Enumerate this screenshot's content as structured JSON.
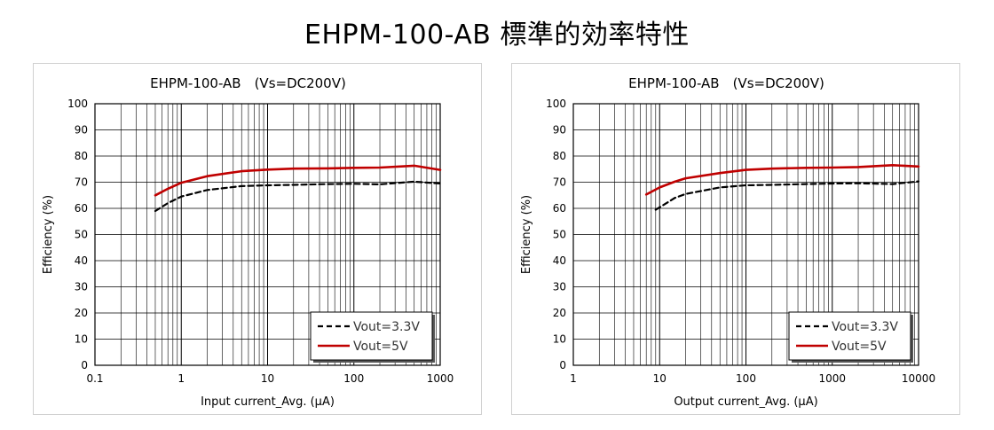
{
  "page": {
    "title": "EHPM-100-AB 標準的効率特性"
  },
  "colors": {
    "vout_3_3": "#000000",
    "vout_5": "#c00000",
    "grid": "#000000"
  },
  "chart_data": [
    {
      "type": "line",
      "title": "EHPM-100-AB　(Vs=DC200V)",
      "xlabel": "Input current_Avg. (μA)",
      "ylabel": "Efficiency (%)",
      "xscale": "log",
      "xlim": [
        0.1,
        1000
      ],
      "ylim": [
        0,
        100
      ],
      "xticks": [
        0.1,
        1,
        10,
        100,
        1000
      ],
      "xtick_labels": [
        "0.1",
        "1",
        "10",
        "100",
        "1000"
      ],
      "yticks": [
        0,
        10,
        20,
        30,
        40,
        50,
        60,
        70,
        80,
        90,
        100
      ],
      "grid": true,
      "legend_position": "bottom-right",
      "series": [
        {
          "name": "Vout=3.3V",
          "style": "dashed",
          "color": "#000000",
          "x": [
            0.5,
            0.7,
            1,
            2,
            5,
            10,
            20,
            50,
            100,
            200,
            500,
            1000
          ],
          "y": [
            59.0,
            62.0,
            64.5,
            67.0,
            68.5,
            68.8,
            69.0,
            69.3,
            69.4,
            69.2,
            70.2,
            69.5
          ]
        },
        {
          "name": "Vout=5V",
          "style": "solid",
          "color": "#c00000",
          "x": [
            0.5,
            0.7,
            1,
            2,
            5,
            10,
            20,
            50,
            100,
            200,
            500,
            1000
          ],
          "y": [
            65.0,
            67.5,
            69.8,
            72.3,
            74.2,
            74.8,
            75.2,
            75.3,
            75.5,
            75.6,
            76.3,
            74.7
          ]
        }
      ]
    },
    {
      "type": "line",
      "title": "EHPM-100-AB　(Vs=DC200V)",
      "xlabel": "Output current_Avg. (μA)",
      "ylabel": "Efficiency (%)",
      "xscale": "log",
      "xlim": [
        1,
        10000
      ],
      "ylim": [
        0,
        100
      ],
      "xticks": [
        1,
        10,
        100,
        1000,
        10000
      ],
      "xtick_labels": [
        "1",
        "10",
        "100",
        "1000",
        "10000"
      ],
      "yticks": [
        0,
        10,
        20,
        30,
        40,
        50,
        60,
        70,
        80,
        90,
        100
      ],
      "grid": true,
      "legend_position": "bottom-right",
      "series": [
        {
          "name": "Vout=3.3V",
          "style": "dashed",
          "color": "#000000",
          "x": [
            9,
            12,
            15,
            20,
            50,
            100,
            200,
            500,
            1000,
            2000,
            5000,
            10000
          ],
          "y": [
            59.5,
            62.0,
            64.0,
            65.5,
            68.0,
            68.8,
            69.0,
            69.3,
            69.5,
            69.6,
            69.3,
            70.3
          ]
        },
        {
          "name": "Vout=5V",
          "style": "solid",
          "color": "#c00000",
          "x": [
            7,
            10,
            15,
            20,
            50,
            100,
            200,
            500,
            1000,
            2000,
            5000,
            10000
          ],
          "y": [
            65.3,
            68.0,
            70.2,
            71.5,
            73.5,
            74.7,
            75.2,
            75.5,
            75.6,
            75.8,
            76.5,
            76.0
          ]
        }
      ]
    }
  ]
}
